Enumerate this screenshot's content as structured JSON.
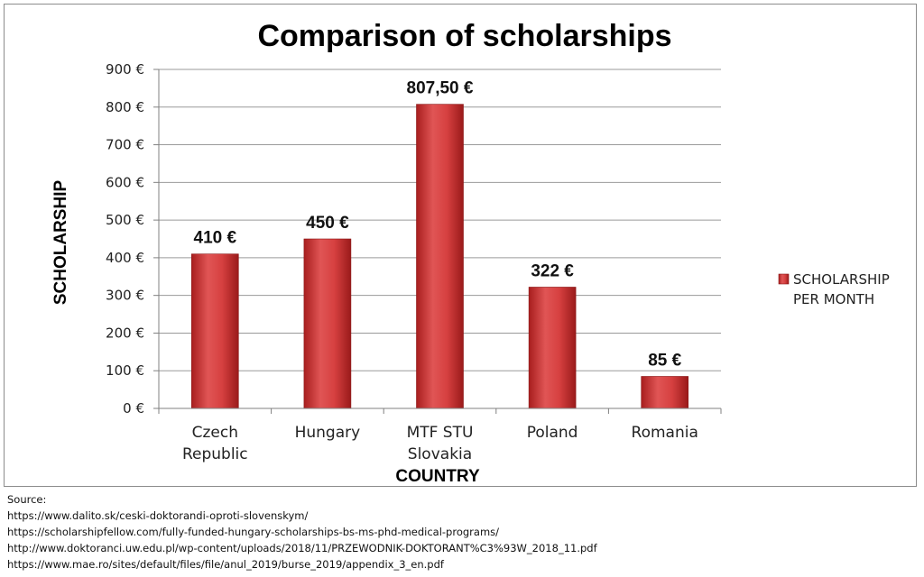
{
  "chart_data": {
    "type": "bar",
    "title": "Comparison of scholarships",
    "xlabel": "COUNTRY",
    "ylabel": "SCHOLARSHIP",
    "categories": [
      [
        "Czech",
        "Republic"
      ],
      [
        "Hungary"
      ],
      [
        "MTF STU",
        "Slovakia"
      ],
      [
        "Poland"
      ],
      [
        "Romania"
      ]
    ],
    "series": [
      {
        "name": [
          "SCHOLARSHIP",
          "PER MONTH"
        ],
        "values": [
          410,
          450,
          807.5,
          322,
          85
        ],
        "data_labels": [
          "410 €",
          "450 €",
          "807,50 €",
          "322 €",
          "85 €"
        ],
        "color": "#d23a3a"
      }
    ],
    "ylim": [
      0,
      900
    ],
    "yticks": [
      0,
      100,
      200,
      300,
      400,
      500,
      600,
      700,
      800,
      900
    ],
    "ytick_labels": [
      "0 €",
      "100 €",
      "200 €",
      "300 €",
      "400 €",
      "500 €",
      "600 €",
      "700 €",
      "800 €",
      "900 €"
    ],
    "grid": true,
    "legend": "right"
  },
  "sources": {
    "heading": "Source:",
    "lines": [
      "https://www.dalito.sk/ceski-doktorandi-oproti-slovenskym/",
      "https://scholarshipfellow.com/fully-funded-hungary-scholarships-bs-ms-phd-medical-programs/",
      "http://www.doktoranci.uw.edu.pl/wp-content/uploads/2018/11/PRZEWODNIK-DOKTORANT%C3%93W_2018_11.pdf",
      "https://www.mae.ro/sites/default/files/file/anul_2019/burse_2019/appendix_3_en.pdf"
    ]
  }
}
